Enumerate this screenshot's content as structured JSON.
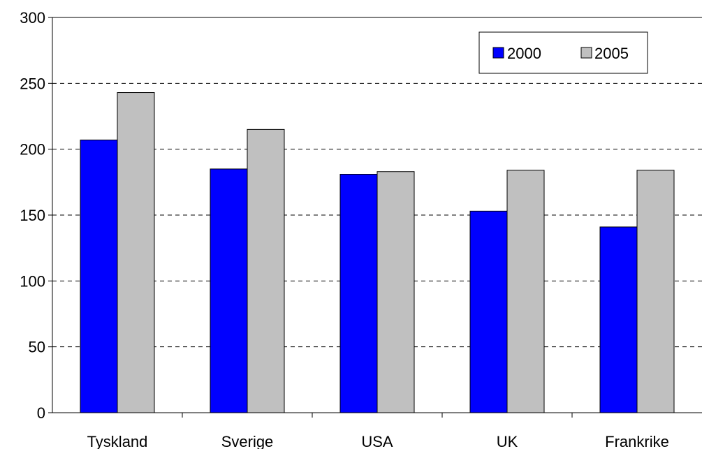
{
  "chart_data": {
    "type": "bar",
    "categories": [
      "Tyskland",
      "Sverige",
      "USA",
      "UK",
      "Frankrike"
    ],
    "series": [
      {
        "name": "2000",
        "color": "#0000FF",
        "values": [
          207,
          185,
          181,
          153,
          141
        ]
      },
      {
        "name": "2005",
        "color": "#C0C0C0",
        "values": [
          243,
          215,
          183,
          184,
          184
        ]
      }
    ],
    "ylim": [
      0,
      300
    ],
    "yticks": [
      "0",
      "50",
      "100",
      "150",
      "200",
      "250",
      "300"
    ],
    "grid": true,
    "legend_position": "top-right"
  }
}
